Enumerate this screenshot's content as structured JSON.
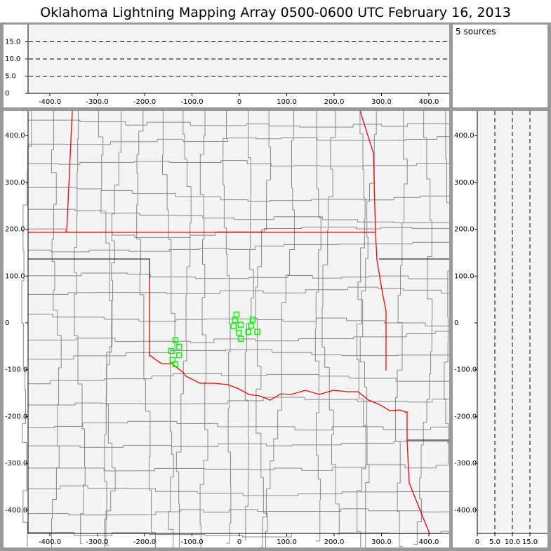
{
  "title": "Oklahoma Lightning Mapping Array   0500-0600 UTC  February 16, 2013",
  "source_count_label": "5 sources",
  "axes": {
    "horizontal_ticks": [
      "-400.0",
      "-300.0",
      "-200.0",
      "-100.0",
      "0",
      "100.0",
      "200.0",
      "300.0",
      "400.0"
    ],
    "horizontal_values": [
      -400,
      -300,
      -200,
      -100,
      0,
      100,
      200,
      300,
      400
    ],
    "vertical_ticks": [
      "400.0",
      "300.0",
      "200.0",
      "100.0",
      "0",
      "-100.0",
      "-200.0",
      "-300.0",
      "-400.0"
    ],
    "vertical_values": [
      400,
      300,
      200,
      100,
      0,
      -100,
      -200,
      -300,
      -400
    ],
    "altitude_ticks": [
      "0",
      "5.0",
      "10.0",
      "15.0"
    ],
    "altitude_values": [
      0,
      5,
      10,
      15
    ],
    "x_range": [
      -445,
      445
    ],
    "y_range": [
      -450,
      450
    ],
    "altitude_range": [
      0,
      20
    ]
  },
  "colors": {
    "state_border": "#ff0000",
    "county": "#888888",
    "station": "#00ff00",
    "background": "#f4f4f4"
  },
  "stations": [
    {
      "x": -6,
      "y": 18
    },
    {
      "x": -9,
      "y": 6
    },
    {
      "x": -12,
      "y": -7
    },
    {
      "x": 3,
      "y": -4
    },
    {
      "x": -1,
      "y": -21
    },
    {
      "x": 3,
      "y": -34
    },
    {
      "x": 19,
      "y": -19
    },
    {
      "x": 25,
      "y": -6
    },
    {
      "x": 28,
      "y": 7
    },
    {
      "x": 38,
      "y": -19
    },
    {
      "x": -135,
      "y": -37
    },
    {
      "x": -127,
      "y": -51
    },
    {
      "x": -144,
      "y": -60
    },
    {
      "x": -127,
      "y": -69
    },
    {
      "x": -141,
      "y": -79
    },
    {
      "x": -135,
      "y": -88
    }
  ]
}
